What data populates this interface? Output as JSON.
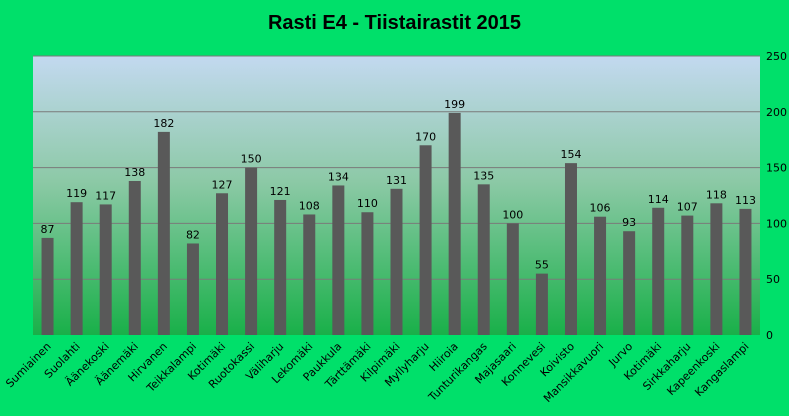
{
  "chart_data": {
    "type": "bar",
    "title": "Rasti E4 - Tiistairastit 2015",
    "xlabel": "",
    "ylabel": "",
    "ylim": [
      0,
      250
    ],
    "yticks": [
      0,
      50,
      100,
      150,
      200,
      250
    ],
    "y_axis_side": "right",
    "grid": true,
    "legend": "none",
    "categories": [
      "Sumiainen",
      "Suolahti",
      "Äänekoski",
      "Äänemäki",
      "Hirvanen",
      "Teikkalampi",
      "Kotimäki",
      "Ruotokassi",
      "Väliharju",
      "Lekomäki",
      "Paukkula",
      "Tärttämäki",
      "Kilpimäki",
      "Myllyharju",
      "Hiiroia",
      "Tunturikangas",
      "Majasaari",
      "Konnevesi",
      "Koivisto",
      "Mansikkavuori",
      "Jurvo",
      "Kotimäki",
      "Sirkkaharju",
      "Kapeenkoski",
      "Kangaslampi"
    ],
    "values": [
      87,
      119,
      117,
      138,
      182,
      82,
      127,
      150,
      121,
      108,
      134,
      110,
      131,
      170,
      199,
      135,
      100,
      55,
      154,
      106,
      93,
      114,
      107,
      118,
      113
    ],
    "colors": {
      "background": "#00e06a",
      "bar": "#595959",
      "plot_top": "#c3d9f0",
      "plot_bottom": "#19b049",
      "gridline": "#7a7a7a"
    }
  }
}
